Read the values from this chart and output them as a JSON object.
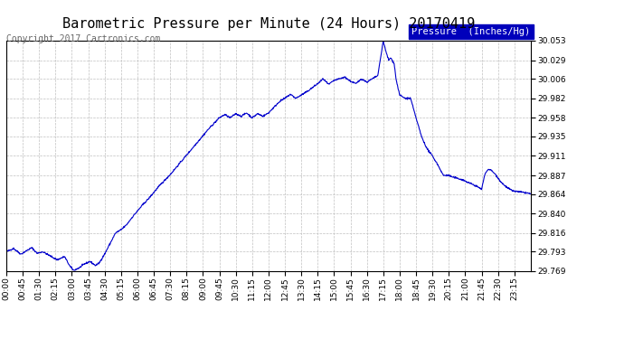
{
  "title": "Barometric Pressure per Minute (24 Hours) 20170419",
  "copyright": "Copyright 2017 Cartronics.com",
  "legend_label": "Pressure  (Inches/Hg)",
  "legend_bg": "#0000bb",
  "legend_fg": "#ffffff",
  "line_color": "#0000cc",
  "bg_color": "#ffffff",
  "grid_color": "#c0c0c0",
  "title_color": "#000000",
  "yticks": [
    29.769,
    29.793,
    29.816,
    29.84,
    29.864,
    29.887,
    29.911,
    29.935,
    29.958,
    29.982,
    30.006,
    30.029,
    30.053
  ],
  "xtick_labels": [
    "00:00",
    "00:45",
    "01:30",
    "02:15",
    "03:00",
    "03:45",
    "04:30",
    "05:15",
    "06:00",
    "06:45",
    "07:30",
    "08:15",
    "09:00",
    "09:45",
    "10:30",
    "11:15",
    "12:00",
    "12:45",
    "13:30",
    "14:15",
    "15:00",
    "15:45",
    "16:30",
    "17:15",
    "18:00",
    "18:45",
    "19:30",
    "20:15",
    "21:00",
    "21:45",
    "22:30",
    "23:15"
  ],
  "ymin": 29.769,
  "ymax": 30.053,
  "title_fontsize": 11,
  "tick_fontsize": 6.5,
  "copyright_fontsize": 7
}
